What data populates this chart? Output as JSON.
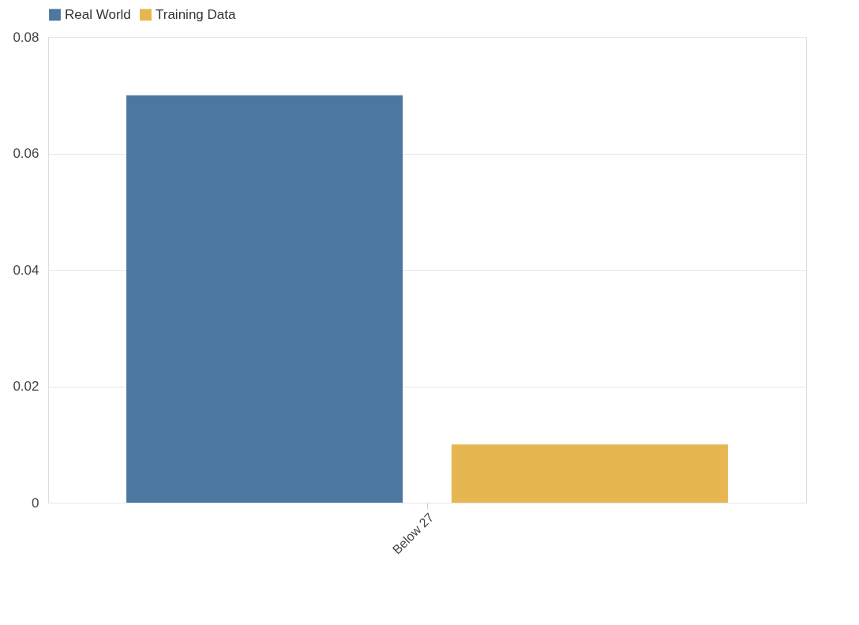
{
  "chart_data": {
    "type": "bar",
    "categories": [
      "Below 27"
    ],
    "series": [
      {
        "name": "Real World",
        "color": "#46739b",
        "values": [
          0.07
        ]
      },
      {
        "name": "Training Data",
        "color": "#e5b44b",
        "values": [
          0.01
        ]
      }
    ],
    "ylim": [
      0,
      0.08
    ],
    "yticks": [
      0,
      0.02,
      0.04,
      0.06,
      0.08
    ],
    "grid": "y",
    "legend": "top left"
  }
}
